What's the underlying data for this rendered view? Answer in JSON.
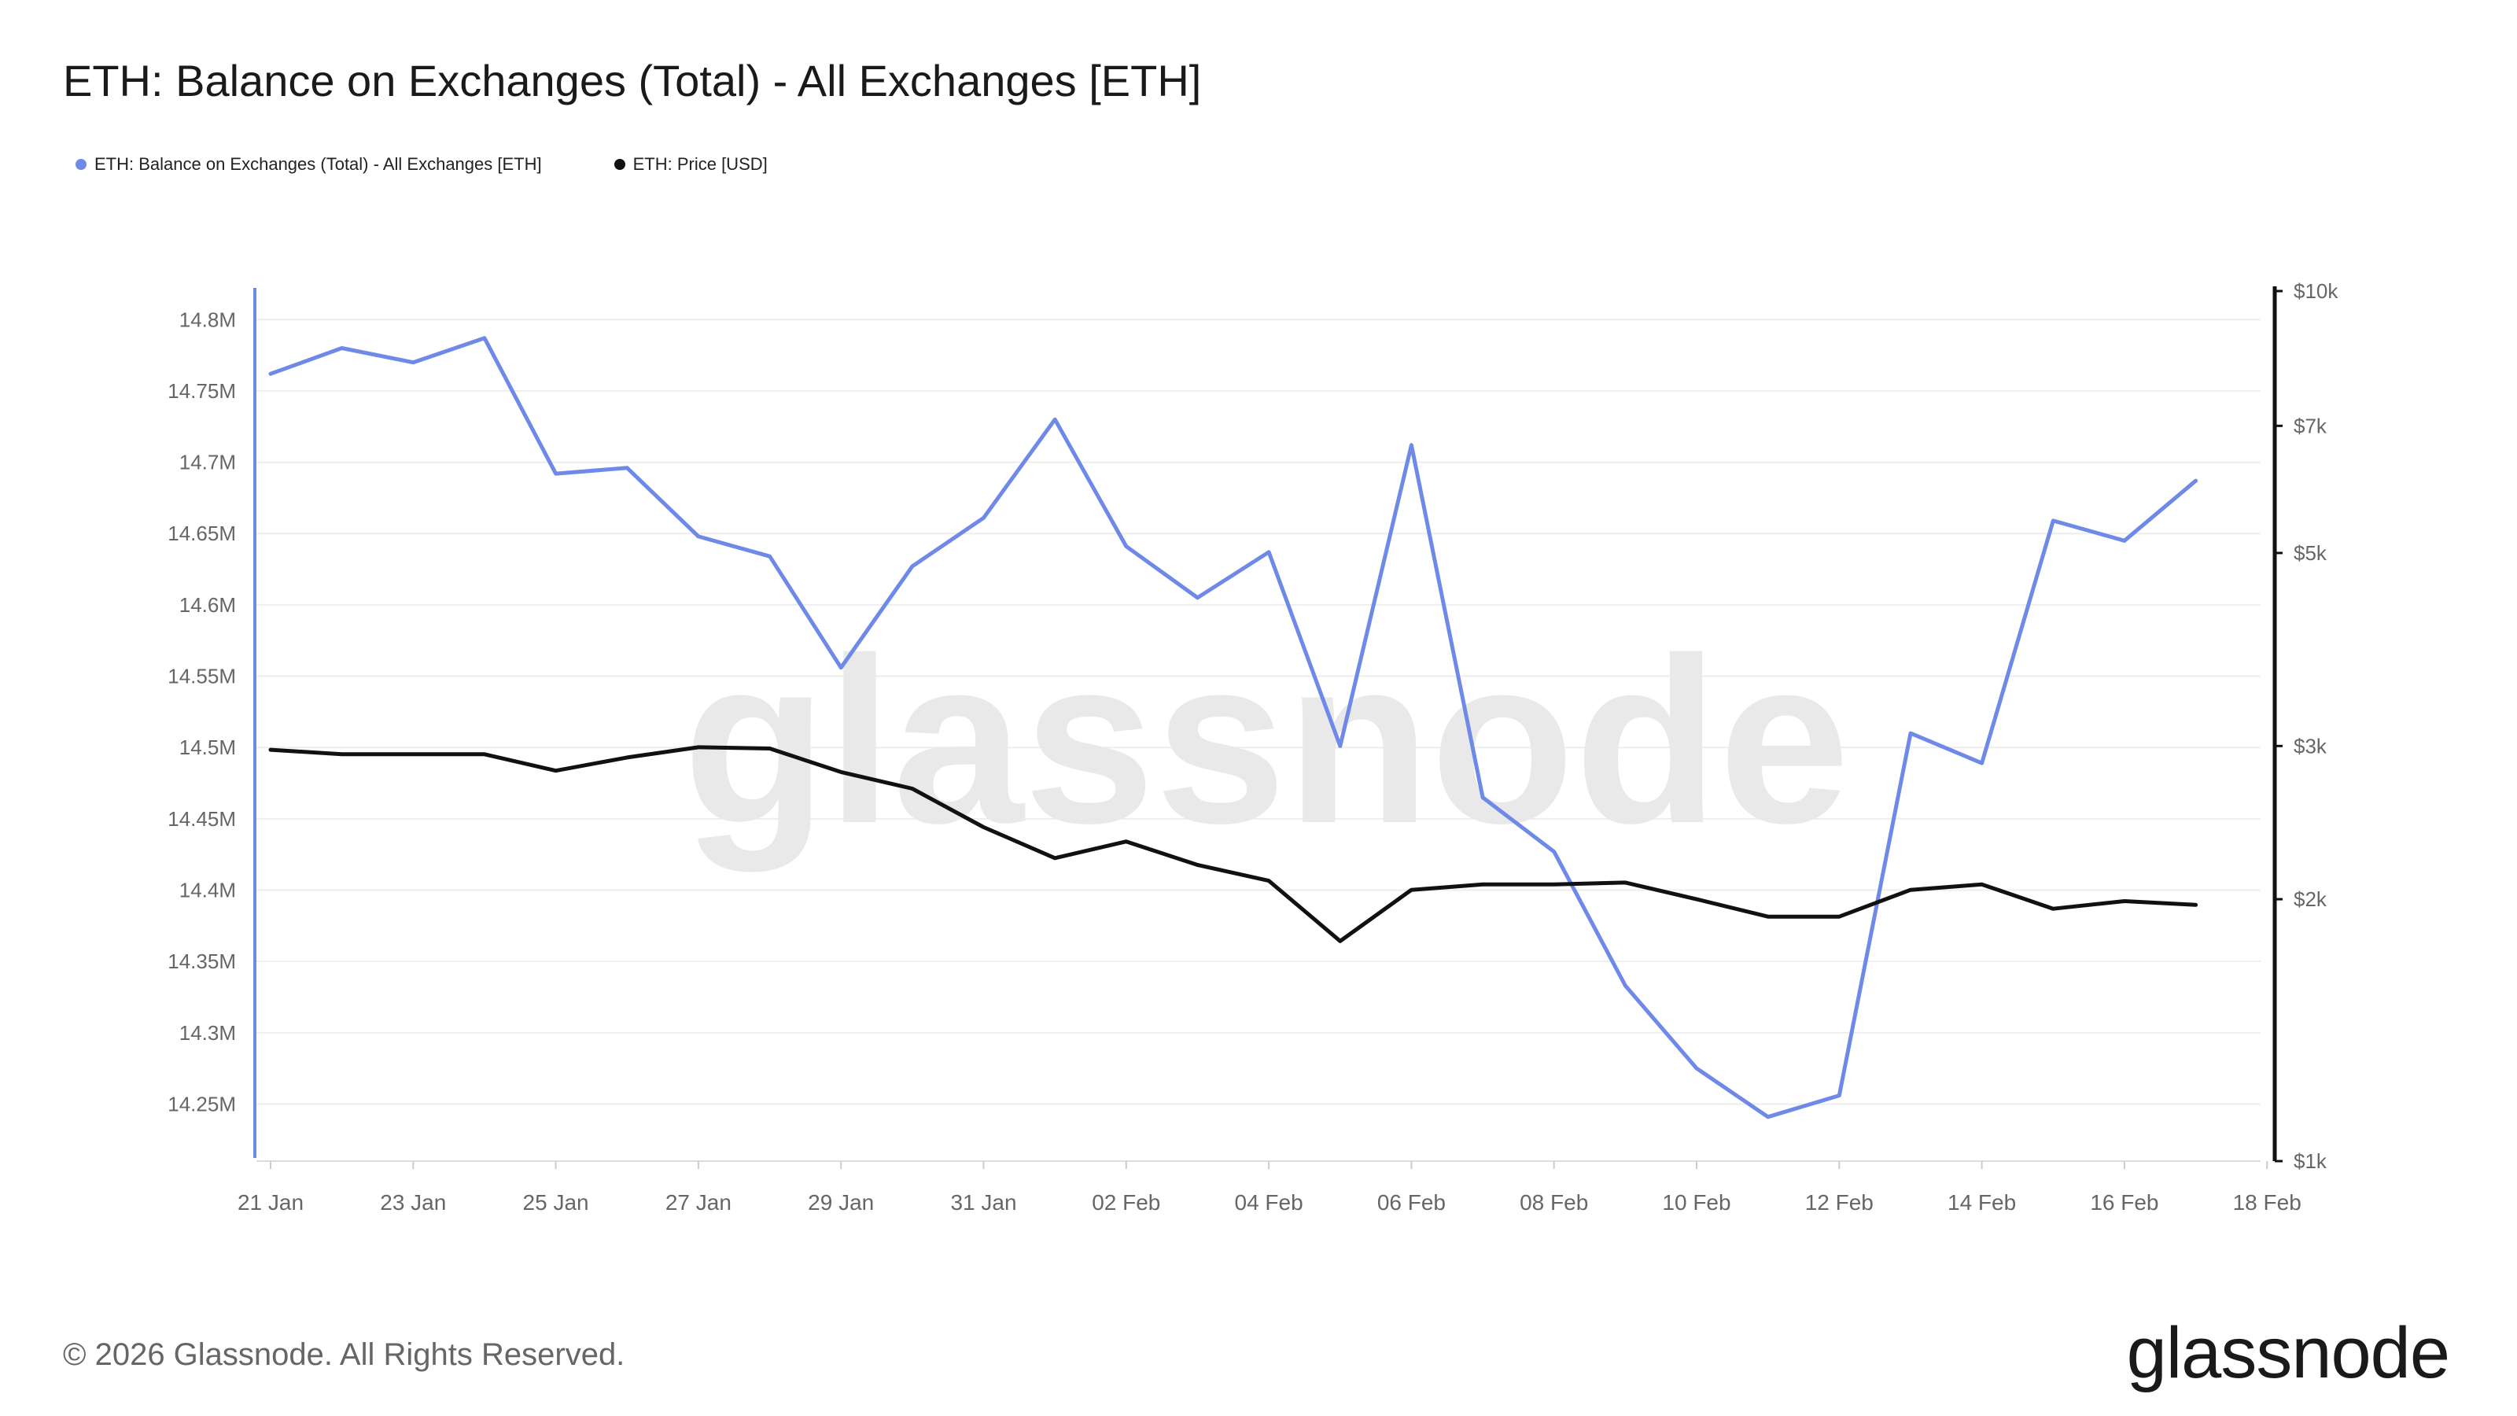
{
  "title": "ETH: Balance on Exchanges (Total) - All Exchanges [ETH]",
  "legend": [
    {
      "label": "ETH: Balance on Exchanges (Total) - All Exchanges [ETH]",
      "color": "#6F89E8"
    },
    {
      "label": "ETH: Price [USD]",
      "color": "#111111"
    }
  ],
  "watermark": "glassnode",
  "footer": "© 2026 Glassnode. All Rights Reserved.",
  "logo": "glassnode",
  "chart_data": {
    "type": "line",
    "x": [
      "21 Jan",
      "22 Jan",
      "23 Jan",
      "24 Jan",
      "25 Jan",
      "26 Jan",
      "27 Jan",
      "28 Jan",
      "29 Jan",
      "30 Jan",
      "31 Jan",
      "01 Feb",
      "02 Feb",
      "03 Feb",
      "04 Feb",
      "05 Feb",
      "06 Feb",
      "07 Feb",
      "08 Feb",
      "09 Feb",
      "10 Feb",
      "11 Feb",
      "12 Feb",
      "13 Feb",
      "14 Feb",
      "15 Feb",
      "16 Feb",
      "17 Feb"
    ],
    "x_ticks": [
      "21 Jan",
      "23 Jan",
      "25 Jan",
      "27 Jan",
      "29 Jan",
      "31 Jan",
      "02 Feb",
      "04 Feb",
      "06 Feb",
      "08 Feb",
      "10 Feb",
      "12 Feb",
      "14 Feb",
      "16 Feb",
      "18 Feb"
    ],
    "y_left": {
      "ticks": [
        "14.8M",
        "14.75M",
        "14.7M",
        "14.65M",
        "14.6M",
        "14.55M",
        "14.5M",
        "14.45M",
        "14.4M",
        "14.35M",
        "14.3M",
        "14.25M"
      ],
      "tick_values": [
        14.8,
        14.75,
        14.7,
        14.65,
        14.6,
        14.55,
        14.5,
        14.45,
        14.4,
        14.35,
        14.3,
        14.25
      ],
      "range": [
        14.21,
        14.82
      ]
    },
    "y_right": {
      "scale": "log",
      "ticks": [
        "$10k",
        "$7k",
        "$5k",
        "$3k",
        "$2k",
        "$1k"
      ],
      "tick_values": [
        10000,
        7000,
        5000,
        3000,
        2000,
        1000
      ],
      "range": [
        1000,
        10000
      ]
    },
    "grid": true,
    "legend_position": "top-left",
    "series": [
      {
        "name": "ETH: Balance on Exchanges (Total) - All Exchanges [ETH]",
        "axis": "left",
        "color": "#6F89E8",
        "values": [
          14.762,
          14.78,
          14.77,
          14.787,
          14.692,
          14.696,
          14.648,
          14.634,
          14.556,
          14.627,
          14.661,
          14.73,
          14.641,
          14.605,
          14.637,
          14.501,
          14.712,
          14.465,
          14.427,
          14.333,
          14.275,
          14.241,
          14.256,
          14.51,
          14.489,
          14.659,
          14.645,
          14.687
        ]
      },
      {
        "name": "ETH: Price [USD]",
        "axis": "right",
        "color": "#111111",
        "values": [
          2970,
          2935,
          2935,
          2935,
          2810,
          2910,
          2990,
          2980,
          2800,
          2680,
          2420,
          2230,
          2330,
          2190,
          2100,
          1790,
          2050,
          2080,
          2080,
          2090,
          2000,
          1910,
          1910,
          2050,
          2080,
          1950,
          1990,
          1970
        ]
      }
    ]
  }
}
